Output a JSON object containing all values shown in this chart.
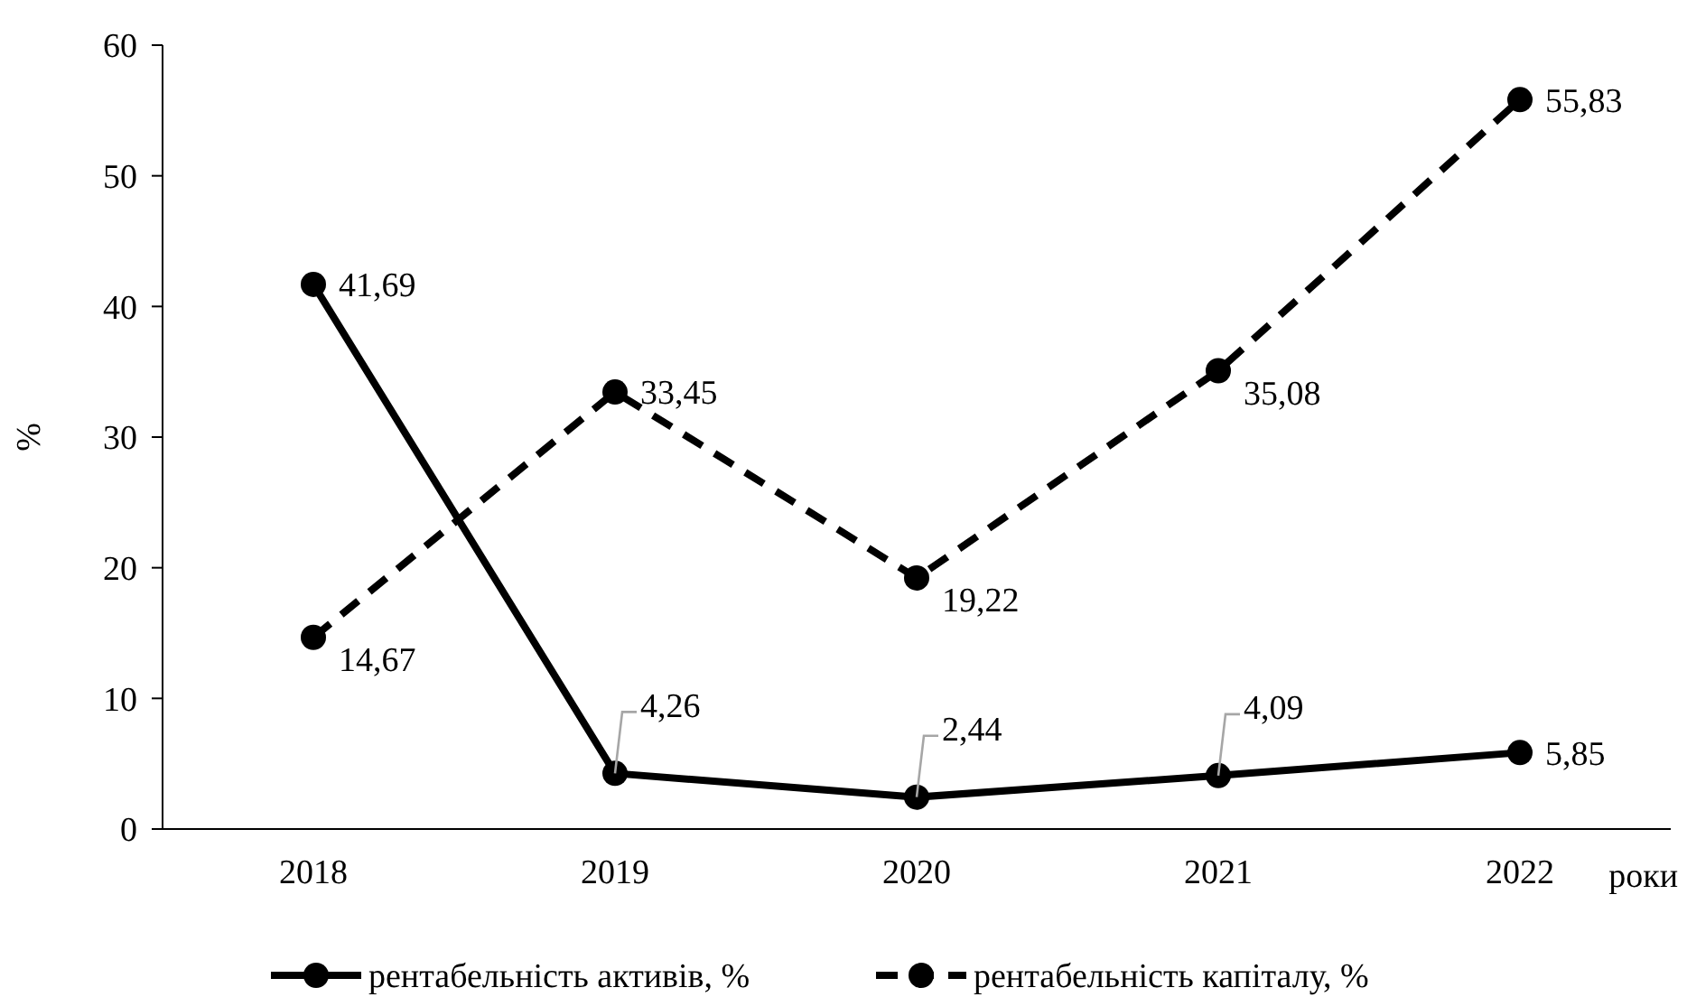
{
  "chart_data": {
    "type": "line",
    "ylabel": "%",
    "xlabel": "роки",
    "categories": [
      "2018",
      "2019",
      "2020",
      "2021",
      "2022"
    ],
    "series": [
      {
        "name": "рентабельність активів, %",
        "color": "#000000",
        "line_style": "solid",
        "values": [
          41.69,
          4.26,
          2.44,
          4.09,
          5.85
        ],
        "value_labels": [
          "41,69",
          "4,26",
          "2,44",
          "4,09",
          "5,85"
        ]
      },
      {
        "name": "рентабельність капіталу, %",
        "color": "#000000",
        "line_style": "dashed",
        "values": [
          14.67,
          33.45,
          19.22,
          35.08,
          55.83
        ],
        "value_labels": [
          "14,67",
          "33,45",
          "19,22",
          "35,08",
          "55,83"
        ]
      }
    ],
    "ylim": [
      0,
      60
    ],
    "yticks": [
      0,
      10,
      20,
      30,
      40,
      50,
      60
    ],
    "grid": false,
    "legend": "bottom",
    "marker": "circle"
  }
}
